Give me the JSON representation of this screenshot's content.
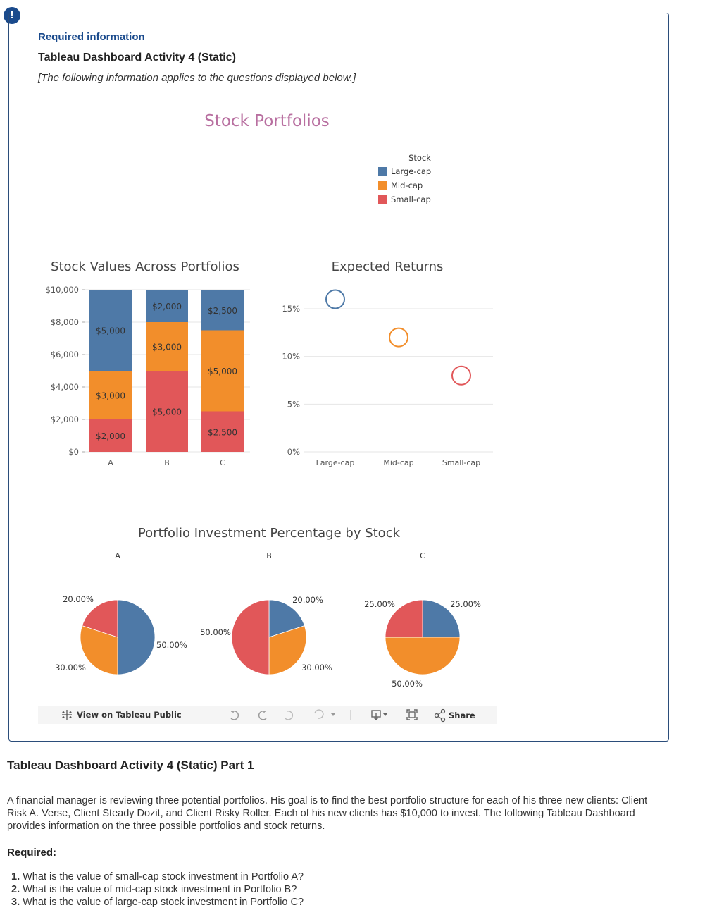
{
  "alert_symbol": "!",
  "info_box": {
    "required_info": "Required information",
    "title": "Tableau Dashboard Activity 4 (Static)",
    "note": "[The following information applies to the questions displayed below.]"
  },
  "dashboard": {
    "title": "Stock Portfolios",
    "legend": {
      "title": "Stock",
      "items": [
        {
          "label": "Large-cap",
          "color": "#4e79a7"
        },
        {
          "label": "Mid-cap",
          "color": "#f28e2b"
        },
        {
          "label": "Small-cap",
          "color": "#e15759"
        }
      ]
    },
    "toolbar": {
      "view_label": "View on Tableau Public",
      "share_label": "Share"
    }
  },
  "chart_data": [
    {
      "type": "bar",
      "title": "Stock Values Across Portfolios",
      "stacked": true,
      "categories": [
        "A",
        "B",
        "C"
      ],
      "series": [
        {
          "name": "Small-cap",
          "color": "#e15759",
          "values": [
            2000,
            5000,
            2500
          ],
          "labels": [
            "$2,000",
            "$5,000",
            "$2,500"
          ]
        },
        {
          "name": "Mid-cap",
          "color": "#f28e2b",
          "values": [
            3000,
            3000,
            5000
          ],
          "labels": [
            "$3,000",
            "$3,000",
            "$5,000"
          ]
        },
        {
          "name": "Large-cap",
          "color": "#4e79a7",
          "values": [
            5000,
            2000,
            2500
          ],
          "labels": [
            "$5,000",
            "$2,000",
            "$2,500"
          ]
        }
      ],
      "ylim": [
        0,
        10000
      ],
      "yticks": [
        0,
        2000,
        4000,
        6000,
        8000,
        10000
      ],
      "ytick_labels": [
        "$0",
        "$2,000",
        "$4,000",
        "$6,000",
        "$8,000",
        "$10,000"
      ],
      "grid": true
    },
    {
      "type": "scatter",
      "title": "Expected Returns",
      "categories": [
        "Large-cap",
        "Mid-cap",
        "Small-cap"
      ],
      "values": [
        16,
        12,
        8
      ],
      "colors": [
        "#4e79a7",
        "#f28e2b",
        "#e15759"
      ],
      "ylim": [
        0,
        17
      ],
      "yticks": [
        0,
        5,
        10,
        15
      ],
      "ytick_labels": [
        "0%",
        "5%",
        "10%",
        "15%"
      ],
      "grid": true
    },
    {
      "type": "pie",
      "title": "Portfolio Investment Percentage by Stock",
      "pies": [
        {
          "name": "A",
          "slices": [
            {
              "label": "Large-cap",
              "value": 50,
              "text": "50.00%",
              "color": "#4e79a7"
            },
            {
              "label": "Mid-cap",
              "value": 30,
              "text": "30.00%",
              "color": "#f28e2b"
            },
            {
              "label": "Small-cap",
              "value": 20,
              "text": "20.00%",
              "color": "#e15759"
            }
          ]
        },
        {
          "name": "B",
          "slices": [
            {
              "label": "Large-cap",
              "value": 20,
              "text": "20.00%",
              "color": "#4e79a7"
            },
            {
              "label": "Mid-cap",
              "value": 30,
              "text": "30.00%",
              "color": "#f28e2b"
            },
            {
              "label": "Small-cap",
              "value": 50,
              "text": "50.00%",
              "color": "#e15759"
            }
          ]
        },
        {
          "name": "C",
          "slices": [
            {
              "label": "Large-cap",
              "value": 25,
              "text": "25.00%",
              "color": "#4e79a7"
            },
            {
              "label": "Mid-cap",
              "value": 50,
              "text": "50.00%",
              "color": "#f28e2b"
            },
            {
              "label": "Small-cap",
              "value": 25,
              "text": "25.00%",
              "color": "#e15759"
            }
          ]
        }
      ]
    }
  ],
  "part": {
    "title": "Tableau Dashboard Activity 4 (Static) Part 1",
    "paragraph": "A financial manager is reviewing three potential portfolios. His goal is to find the best portfolio structure for each of his three new clients: Client Risk A. Verse, Client Steady Dozit, and Client Risky Roller. Each of his new clients has $10,000 to invest. The following Tableau Dashboard provides information on the three possible portfolios and stock returns.",
    "required_label": "Required:",
    "questions": [
      {
        "num": "1.",
        "text": "What is the value of small-cap stock investment in Portfolio A?"
      },
      {
        "num": "2.",
        "text": "What is the value of mid-cap stock investment in Portfolio B?"
      },
      {
        "num": "3.",
        "text": "What is the value of large-cap stock investment in Portfolio C?"
      }
    ]
  }
}
